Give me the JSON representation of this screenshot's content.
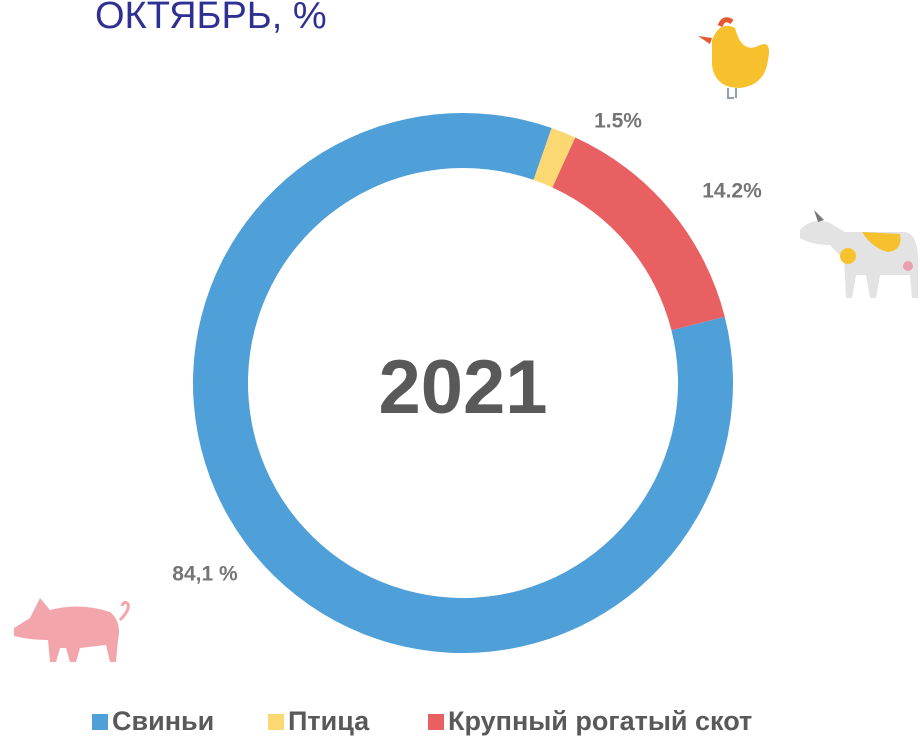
{
  "chart_data": {
    "type": "donut",
    "title": "ОКТЯБРЬ, %",
    "center_text": "2021",
    "categories": [
      "Свиньи",
      "Птица",
      "Крупный рогатый скот"
    ],
    "values": [
      84.1,
      1.5,
      14.2
    ],
    "value_labels": [
      "84,1 %",
      "1.5%",
      "14.2%"
    ],
    "colors": [
      "#4f9fd8",
      "#fbd872",
      "#e96062"
    ],
    "legend": "bottom"
  }
}
